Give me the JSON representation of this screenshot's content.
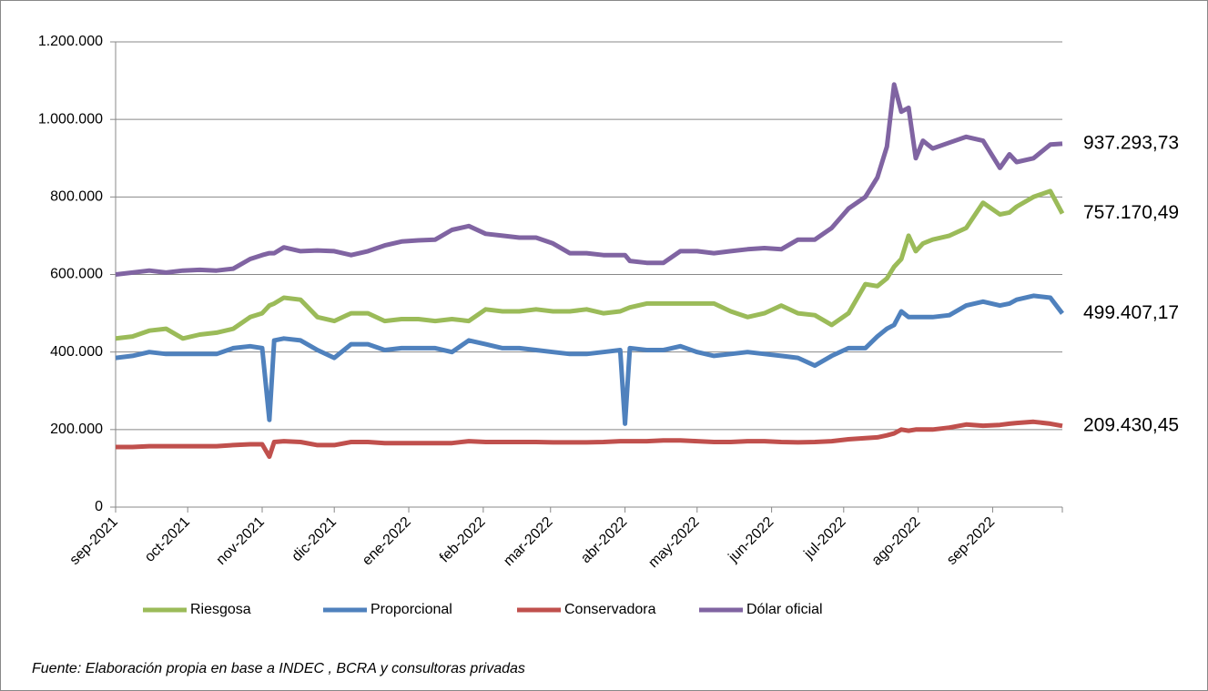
{
  "chart_data": {
    "type": "line",
    "note": "Fuente: Elaboración propia en base a INDEC , BCRA y consultoras privadas",
    "x": [
      0,
      7,
      14,
      21,
      28,
      35,
      42,
      49,
      56,
      61,
      64,
      66,
      70,
      77,
      84,
      91,
      98,
      105,
      112,
      119,
      126,
      133,
      140,
      147,
      154,
      161,
      168,
      175,
      182,
      189,
      196,
      203,
      210,
      212,
      214,
      221,
      228,
      235,
      242,
      249,
      256,
      263,
      270,
      277,
      284,
      291,
      298,
      305,
      312,
      317,
      321,
      324,
      327,
      330,
      333,
      336,
      340,
      347,
      354,
      361,
      368,
      372,
      375,
      382,
      389,
      394
    ],
    "xlim": [
      0,
      394
    ],
    "xticks": [
      {
        "value": 0,
        "label": "sep-2021"
      },
      {
        "value": 30,
        "label": "oct-2021"
      },
      {
        "value": 61,
        "label": "nov-2021"
      },
      {
        "value": 91,
        "label": "dic-2021"
      },
      {
        "value": 122,
        "label": "ene-2022"
      },
      {
        "value": 153,
        "label": "feb-2022"
      },
      {
        "value": 181,
        "label": "mar-2022"
      },
      {
        "value": 212,
        "label": "abr-2022"
      },
      {
        "value": 242,
        "label": "may-2022"
      },
      {
        "value": 273,
        "label": "jun-2022"
      },
      {
        "value": 303,
        "label": "jul-2022"
      },
      {
        "value": 334,
        "label": "ago-2022"
      },
      {
        "value": 365,
        "label": "sep-2022"
      }
    ],
    "ylim": [
      0,
      1200000
    ],
    "yticks": [
      0,
      {
        "value": 200000,
        "label": "200.000"
      },
      {
        "value": 400000,
        "label": "400.000"
      },
      {
        "value": 600000,
        "label": "600.000"
      },
      {
        "value": 800000,
        "label": "800.000"
      },
      {
        "value": 1000000,
        "label": "1.000.000"
      },
      {
        "value": 1200000,
        "label": "1.200.000"
      }
    ],
    "grid": true,
    "legend": "bottom",
    "series": [
      {
        "name": "Riesgosa",
        "color": "#9bbb59",
        "values": [
          435000,
          440000,
          455000,
          460000,
          435000,
          445000,
          450000,
          460000,
          490000,
          500000,
          520000,
          525000,
          540000,
          535000,
          490000,
          480000,
          500000,
          500000,
          480000,
          485000,
          485000,
          480000,
          485000,
          480000,
          510000,
          505000,
          505000,
          510000,
          505000,
          505000,
          510000,
          500000,
          505000,
          510000,
          515000,
          525000,
          525000,
          525000,
          525000,
          525000,
          505000,
          490000,
          500000,
          520000,
          500000,
          495000,
          470000,
          500000,
          575000,
          570000,
          590000,
          620000,
          640000,
          700000,
          660000,
          680000,
          690000,
          700000,
          720000,
          785000,
          755000,
          760000,
          775000,
          800000,
          815000,
          757170.49
        ],
        "value_labels": [
          null,
          null,
          null,
          null,
          null,
          null,
          null,
          null,
          null,
          null,
          null,
          null,
          null,
          null,
          null,
          null,
          null,
          null,
          null,
          null,
          null,
          null,
          null,
          null,
          null,
          null,
          null,
          null,
          null,
          null,
          null,
          null,
          null,
          null,
          null,
          null,
          null,
          null,
          null,
          null,
          null,
          null,
          null,
          null,
          null,
          null,
          null,
          null,
          null,
          null,
          null,
          null,
          null,
          null,
          null,
          null,
          null,
          null,
          null,
          null,
          null,
          null,
          null,
          null,
          null,
          "757.170,49"
        ]
      },
      {
        "name": "Proporcional",
        "color": "#4f81bd",
        "values": [
          385000,
          390000,
          400000,
          395000,
          395000,
          395000,
          395000,
          410000,
          415000,
          410000,
          225000,
          430000,
          435000,
          430000,
          405000,
          385000,
          420000,
          420000,
          405000,
          410000,
          410000,
          410000,
          400000,
          430000,
          420000,
          410000,
          410000,
          405000,
          400000,
          395000,
          395000,
          400000,
          405000,
          215000,
          410000,
          405000,
          405000,
          415000,
          400000,
          390000,
          395000,
          400000,
          395000,
          390000,
          385000,
          365000,
          390000,
          410000,
          410000,
          440000,
          460000,
          470000,
          505000,
          490000,
          490000,
          490000,
          490000,
          495000,
          520000,
          530000,
          520000,
          525000,
          535000,
          545000,
          540000,
          499407.17
        ],
        "value_labels": [
          null,
          null,
          null,
          null,
          null,
          null,
          null,
          null,
          null,
          null,
          null,
          null,
          null,
          null,
          null,
          null,
          null,
          null,
          null,
          null,
          null,
          null,
          null,
          null,
          null,
          null,
          null,
          null,
          null,
          null,
          null,
          null,
          null,
          null,
          null,
          null,
          null,
          null,
          null,
          null,
          null,
          null,
          null,
          null,
          null,
          null,
          null,
          null,
          null,
          null,
          null,
          null,
          null,
          null,
          null,
          null,
          null,
          null,
          null,
          null,
          null,
          null,
          null,
          null,
          null,
          "499.407,17"
        ]
      },
      {
        "name": "Conservadora",
        "color": "#c0504d",
        "values": [
          155000,
          155000,
          157000,
          157000,
          157000,
          157000,
          157000,
          160000,
          162000,
          162000,
          130000,
          168000,
          170000,
          168000,
          160000,
          160000,
          168000,
          168000,
          165000,
          165000,
          165000,
          165000,
          165000,
          170000,
          168000,
          168000,
          168000,
          168000,
          167000,
          167000,
          167000,
          168000,
          170000,
          170000,
          170000,
          170000,
          172000,
          172000,
          170000,
          168000,
          168000,
          170000,
          170000,
          168000,
          167000,
          168000,
          170000,
          175000,
          178000,
          180000,
          185000,
          190000,
          200000,
          197000,
          200000,
          200000,
          200000,
          205000,
          213000,
          210000,
          212000,
          215000,
          217000,
          220000,
          215000,
          209430.45
        ],
        "value_labels": [
          null,
          null,
          null,
          null,
          null,
          null,
          null,
          null,
          null,
          null,
          null,
          null,
          null,
          null,
          null,
          null,
          null,
          null,
          null,
          null,
          null,
          null,
          null,
          null,
          null,
          null,
          null,
          null,
          null,
          null,
          null,
          null,
          null,
          null,
          null,
          null,
          null,
          null,
          null,
          null,
          null,
          null,
          null,
          null,
          null,
          null,
          null,
          null,
          null,
          null,
          null,
          null,
          null,
          null,
          null,
          null,
          null,
          null,
          null,
          null,
          null,
          null,
          null,
          null,
          null,
          "209.430,45"
        ]
      },
      {
        "name": "Dólar oficial",
        "color": "#8064a2",
        "values": [
          600000,
          605000,
          610000,
          605000,
          610000,
          612000,
          610000,
          615000,
          640000,
          650000,
          655000,
          655000,
          670000,
          660000,
          662000,
          660000,
          650000,
          660000,
          675000,
          685000,
          688000,
          690000,
          715000,
          725000,
          705000,
          700000,
          695000,
          695000,
          680000,
          655000,
          655000,
          650000,
          650000,
          650000,
          635000,
          630000,
          630000,
          660000,
          660000,
          655000,
          660000,
          665000,
          668000,
          665000,
          690000,
          690000,
          720000,
          770000,
          800000,
          850000,
          930000,
          1090000,
          1020000,
          1030000,
          900000,
          945000,
          925000,
          940000,
          955000,
          945000,
          875000,
          910000,
          890000,
          900000,
          935000,
          937293.73
        ],
        "value_labels": [
          null,
          null,
          null,
          null,
          null,
          null,
          null,
          null,
          null,
          null,
          null,
          null,
          null,
          null,
          null,
          null,
          null,
          null,
          null,
          null,
          null,
          null,
          null,
          null,
          null,
          null,
          null,
          null,
          null,
          null,
          null,
          null,
          null,
          null,
          null,
          null,
          null,
          null,
          null,
          null,
          null,
          null,
          null,
          null,
          null,
          null,
          null,
          null,
          null,
          null,
          null,
          null,
          null,
          null,
          null,
          null,
          null,
          null,
          null,
          null,
          null,
          null,
          null,
          null,
          null,
          "937.293,73"
        ]
      }
    ]
  }
}
